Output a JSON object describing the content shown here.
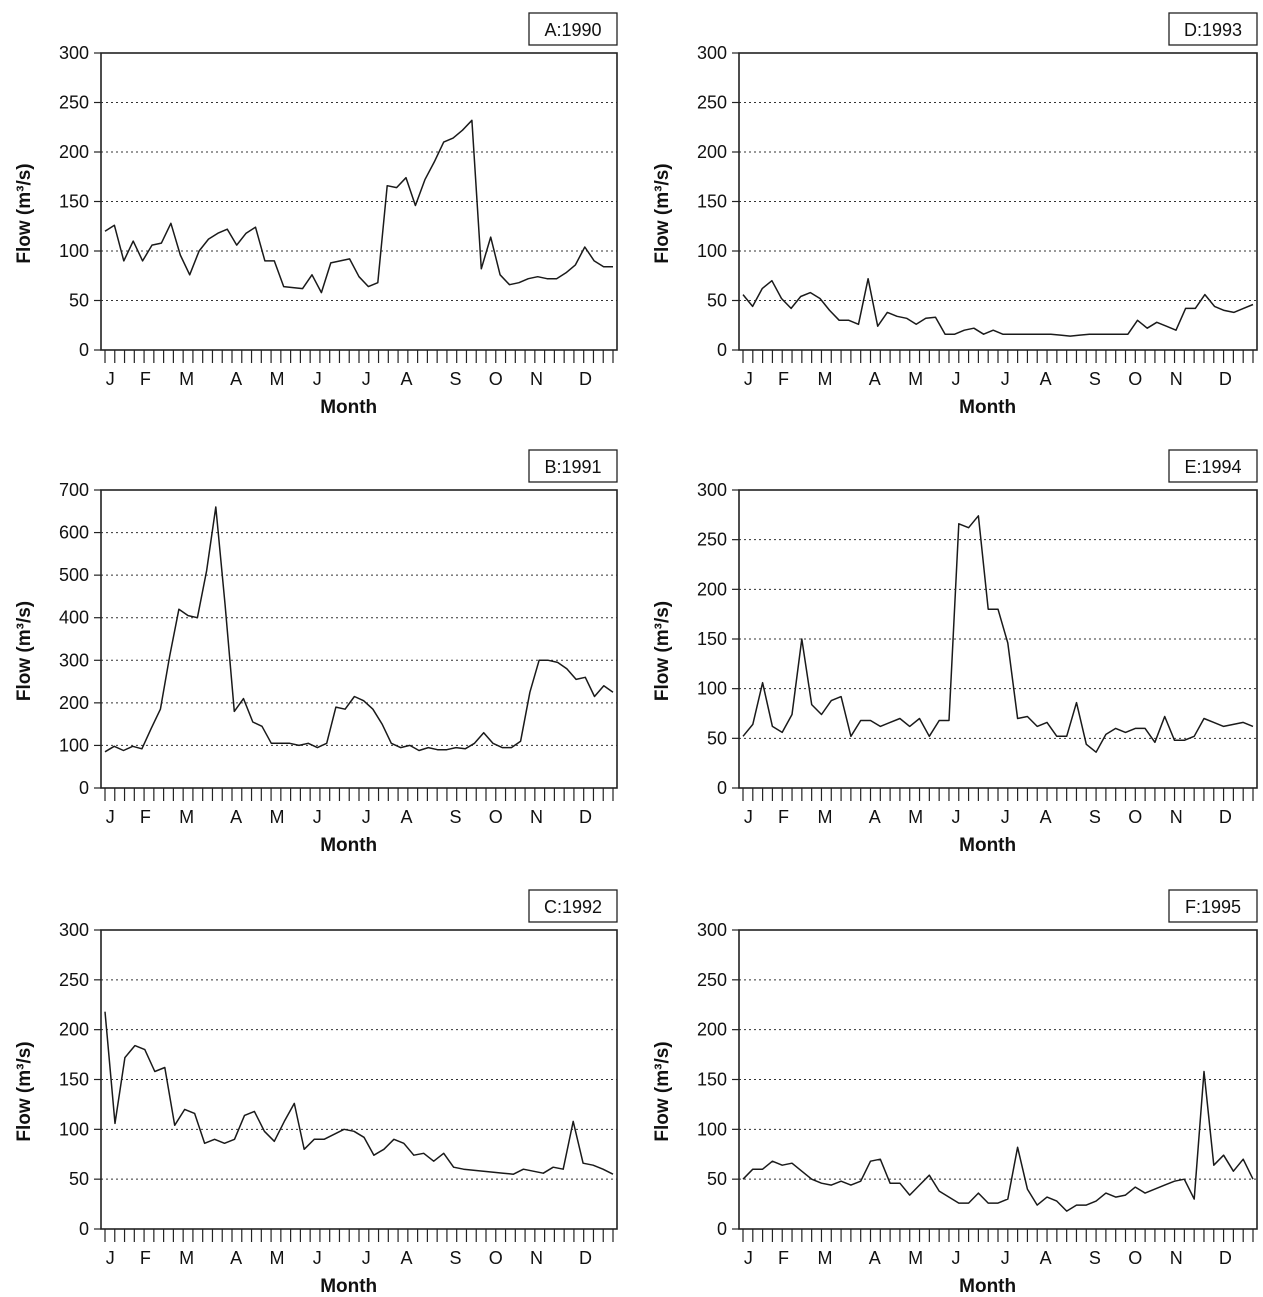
{
  "chart_data": [
    {
      "type": "line",
      "panel_label": "A:1990",
      "xlabel": "Month",
      "ylabel": "Flow  (m³/s)",
      "ylim": [
        0,
        300
      ],
      "yticks": [
        "0",
        "50",
        "100",
        "150",
        "200",
        "250",
        "300"
      ],
      "month_labels": [
        "J",
        "F",
        "M",
        "A",
        "M",
        "J",
        "J",
        "A",
        "S",
        "O",
        "N",
        "D"
      ],
      "grid": "horizontal dotted",
      "series": [
        {
          "values": [
            120,
            126,
            90,
            110,
            90,
            106,
            108,
            128,
            96,
            76,
            100,
            112,
            118,
            122,
            106,
            118,
            124,
            90,
            90,
            64,
            63,
            62,
            76,
            58,
            88,
            90,
            92,
            74,
            64,
            68,
            166,
            164,
            174,
            146,
            172,
            190,
            210,
            214,
            222,
            232,
            82,
            114,
            76,
            66,
            68,
            72,
            74,
            72,
            72,
            78,
            86,
            104,
            90,
            84,
            84
          ]
        }
      ]
    },
    {
      "type": "line",
      "panel_label": "B:1991",
      "xlabel": "Month",
      "ylabel": "Flow  (m³/s)",
      "ylim": [
        0,
        700
      ],
      "yticks": [
        "0",
        "100",
        "200",
        "300",
        "400",
        "500",
        "600",
        "700"
      ],
      "month_labels": [
        "J",
        "F",
        "M",
        "A",
        "M",
        "J",
        "J",
        "A",
        "S",
        "O",
        "N",
        "D"
      ],
      "grid": "horizontal dotted",
      "series": [
        {
          "values": [
            85,
            98,
            88,
            98,
            92,
            140,
            185,
            310,
            420,
            405,
            400,
            510,
            660,
            430,
            180,
            210,
            155,
            145,
            105,
            105,
            105,
            100,
            105,
            95,
            105,
            190,
            185,
            215,
            205,
            185,
            150,
            105,
            95,
            100,
            88,
            95,
            90,
            90,
            95,
            92,
            105,
            130,
            105,
            95,
            95,
            110,
            225,
            300,
            300,
            295,
            280,
            255,
            260,
            215,
            240,
            225
          ]
        }
      ]
    },
    {
      "type": "line",
      "panel_label": "C:1992",
      "xlabel": "Month",
      "ylabel": "Flow  (m³/s)",
      "ylim": [
        0,
        300
      ],
      "yticks": [
        "0",
        "50",
        "100",
        "150",
        "200",
        "250",
        "300"
      ],
      "month_labels": [
        "J",
        "F",
        "M",
        "A",
        "M",
        "J",
        "J",
        "A",
        "S",
        "O",
        "N",
        "D"
      ],
      "grid": "horizontal dotted",
      "series": [
        {
          "values": [
            218,
            106,
            172,
            184,
            180,
            158,
            162,
            104,
            120,
            116,
            86,
            90,
            86,
            90,
            114,
            118,
            98,
            88,
            108,
            126,
            80,
            90,
            90,
            95,
            100,
            98,
            92,
            74,
            80,
            90,
            86,
            74,
            76,
            68,
            76,
            62,
            60,
            59,
            58,
            57,
            56,
            55,
            60,
            58,
            56,
            62,
            60,
            108,
            66,
            64,
            60,
            55
          ]
        }
      ]
    },
    {
      "type": "line",
      "panel_label": "D:1993",
      "xlabel": "Month",
      "ylabel": "Flow  (m³/s)",
      "ylim": [
        0,
        300
      ],
      "yticks": [
        "0",
        "50",
        "100",
        "150",
        "200",
        "250",
        "300"
      ],
      "month_labels": [
        "J",
        "F",
        "M",
        "A",
        "M",
        "J",
        "J",
        "A",
        "S",
        "O",
        "N",
        "D"
      ],
      "grid": "horizontal dotted",
      "series": [
        {
          "values": [
            56,
            44,
            62,
            70,
            52,
            42,
            54,
            58,
            52,
            40,
            30,
            30,
            26,
            72,
            24,
            38,
            34,
            32,
            26,
            32,
            33,
            16,
            16,
            20,
            22,
            16,
            20,
            16,
            16,
            16,
            16,
            16,
            16,
            15,
            14,
            15,
            16,
            16,
            16,
            16,
            16,
            30,
            22,
            28,
            24,
            20,
            42,
            42,
            56,
            44,
            40,
            38,
            42,
            46
          ]
        }
      ]
    },
    {
      "type": "line",
      "panel_label": "E:1994",
      "xlabel": "Month",
      "ylabel": "Flow  (m³/s)",
      "ylim": [
        0,
        300
      ],
      "yticks": [
        "0",
        "50",
        "100",
        "150",
        "200",
        "250",
        "300"
      ],
      "month_labels": [
        "J",
        "F",
        "M",
        "A",
        "M",
        "J",
        "J",
        "A",
        "S",
        "O",
        "N",
        "D"
      ],
      "grid": "horizontal dotted",
      "series": [
        {
          "values": [
            52,
            64,
            106,
            62,
            56,
            74,
            150,
            84,
            74,
            88,
            92,
            52,
            68,
            68,
            62,
            66,
            70,
            62,
            70,
            52,
            68,
            68,
            266,
            262,
            274,
            180,
            180,
            146,
            70,
            72,
            62,
            66,
            52,
            52,
            86,
            44,
            36,
            54,
            60,
            56,
            60,
            60,
            46,
            72,
            48,
            48,
            52,
            70,
            66,
            62,
            64,
            66,
            62
          ]
        }
      ]
    },
    {
      "type": "line",
      "panel_label": "F:1995",
      "xlabel": "Month",
      "ylabel": "Flow  (m³/s)",
      "ylim": [
        0,
        300
      ],
      "yticks": [
        "0",
        "50",
        "100",
        "150",
        "200",
        "250",
        "300"
      ],
      "month_labels": [
        "J",
        "F",
        "M",
        "A",
        "M",
        "J",
        "J",
        "A",
        "S",
        "O",
        "N",
        "D"
      ],
      "grid": "horizontal dotted",
      "series": [
        {
          "values": [
            50,
            60,
            60,
            68,
            64,
            66,
            58,
            50,
            46,
            44,
            48,
            44,
            48,
            68,
            70,
            46,
            46,
            34,
            44,
            54,
            38,
            32,
            26,
            26,
            36,
            26,
            26,
            30,
            82,
            40,
            24,
            32,
            28,
            18,
            24,
            24,
            28,
            36,
            32,
            34,
            42,
            36,
            40,
            44,
            48,
            50,
            30,
            158,
            64,
            74,
            58,
            70,
            50
          ]
        }
      ]
    }
  ]
}
